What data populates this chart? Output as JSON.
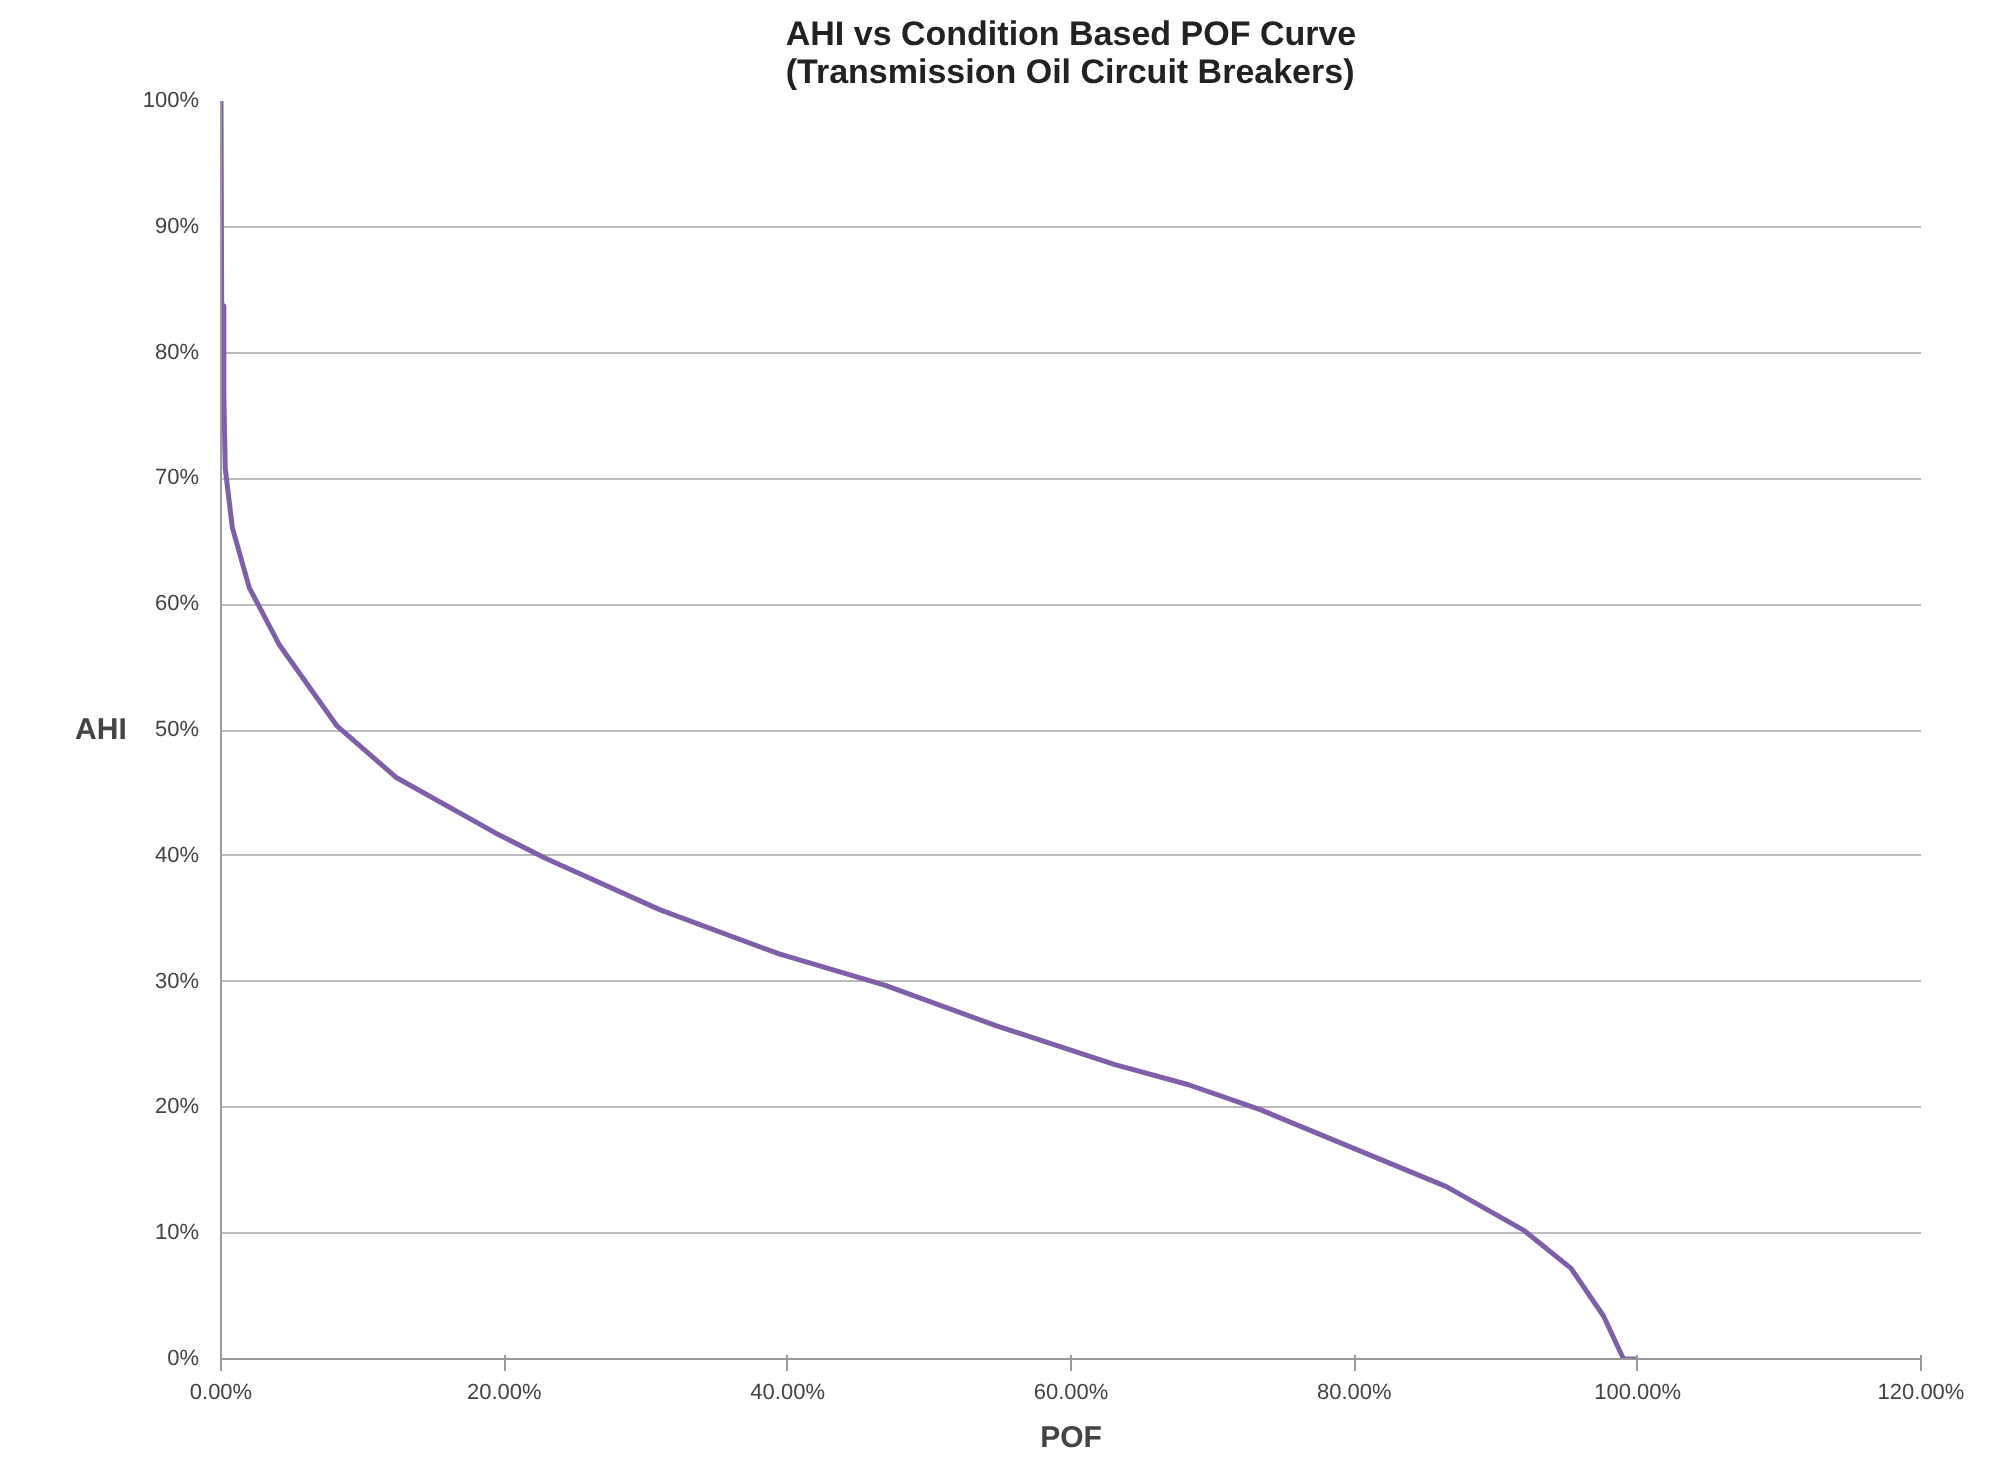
{
  "chart_data": {
    "type": "line",
    "title": "AHI vs Condition Based POF Curve\n(Transmission Oil Circuit Breakers)",
    "xlabel": "POF",
    "ylabel": "AHI",
    "x": [
      0,
      0.05,
      0.2,
      0.2,
      0.3,
      0.8,
      2.0,
      4.1,
      8.2,
      12.4,
      19.4,
      22.9,
      31.0,
      39.4,
      46.9,
      54.7,
      63.1,
      68.3,
      73.4,
      86.5,
      92.0,
      95.3,
      97.6,
      99.0,
      100.0
    ],
    "series": [
      {
        "color": "#7f5fa8",
        "values": [
          100,
          83,
          83.7,
          76.6,
          70.8,
          66.1,
          61.3,
          56.8,
          50.3,
          46.2,
          41.8,
          39.8,
          35.7,
          32.2,
          29.7,
          26.5,
          23.4,
          21.8,
          19.8,
          13.7,
          10.2,
          7.2,
          3.4,
          0,
          0
        ]
      }
    ],
    "xlim": [
      0,
      120
    ],
    "ylim": [
      0,
      100
    ],
    "xticks": [
      {
        "value": 0,
        "label": "0.00%"
      },
      {
        "value": 20,
        "label": "20.00%"
      },
      {
        "value": 40,
        "label": "40.00%"
      },
      {
        "value": 60,
        "label": "60.00%"
      },
      {
        "value": 80,
        "label": "80.00%"
      },
      {
        "value": 100,
        "label": "100.00%"
      },
      {
        "value": 120,
        "label": "120.00%"
      }
    ],
    "yticks": [
      {
        "value": 0,
        "label": "0%"
      },
      {
        "value": 10,
        "label": "10%"
      },
      {
        "value": 20,
        "label": "20%"
      },
      {
        "value": 30,
        "label": "30%"
      },
      {
        "value": 40,
        "label": "40%"
      },
      {
        "value": 50,
        "label": "50%"
      },
      {
        "value": 60,
        "label": "60%"
      },
      {
        "value": 70,
        "label": "70%"
      },
      {
        "value": 80,
        "label": "80%"
      },
      {
        "value": 90,
        "label": "90%"
      },
      {
        "value": 100,
        "label": "100%"
      }
    ],
    "grid": "y",
    "marker": "none",
    "line_style": "solid"
  }
}
